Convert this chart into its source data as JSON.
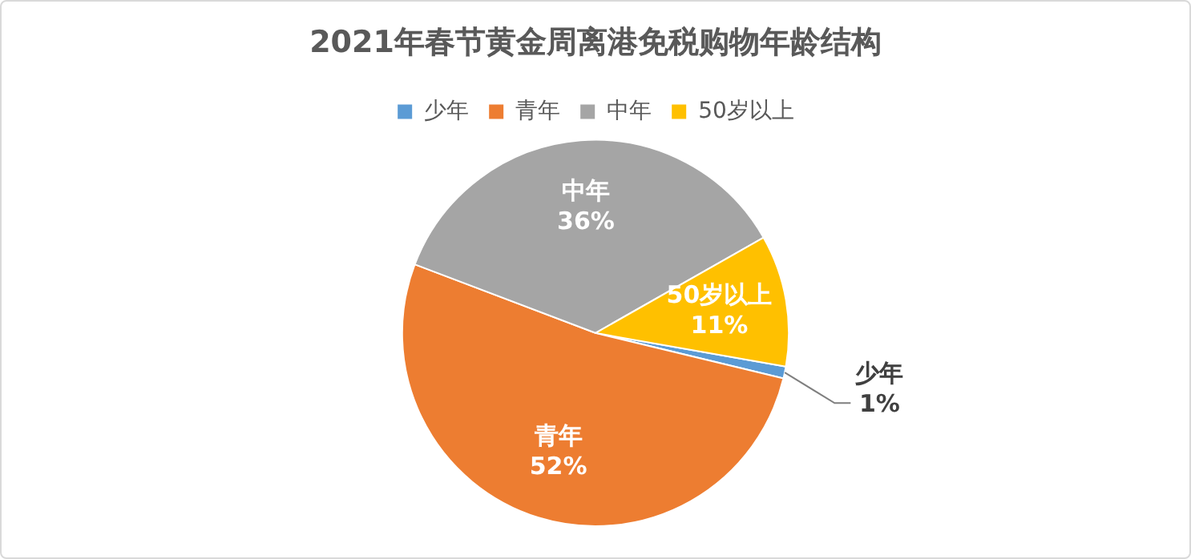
{
  "chart_data": {
    "type": "pie",
    "title": "2021年春节黄金周离港免税购物年龄结构",
    "categories": [
      "少年",
      "青年",
      "中年",
      "50岁以上"
    ],
    "values": [
      1,
      52,
      36,
      11
    ],
    "value_labels": [
      "1%",
      "52%",
      "36%",
      "11%"
    ],
    "colors": [
      "#5b9bd5",
      "#ed7d31",
      "#a5a5a5",
      "#ffc000"
    ],
    "legend": "top"
  }
}
